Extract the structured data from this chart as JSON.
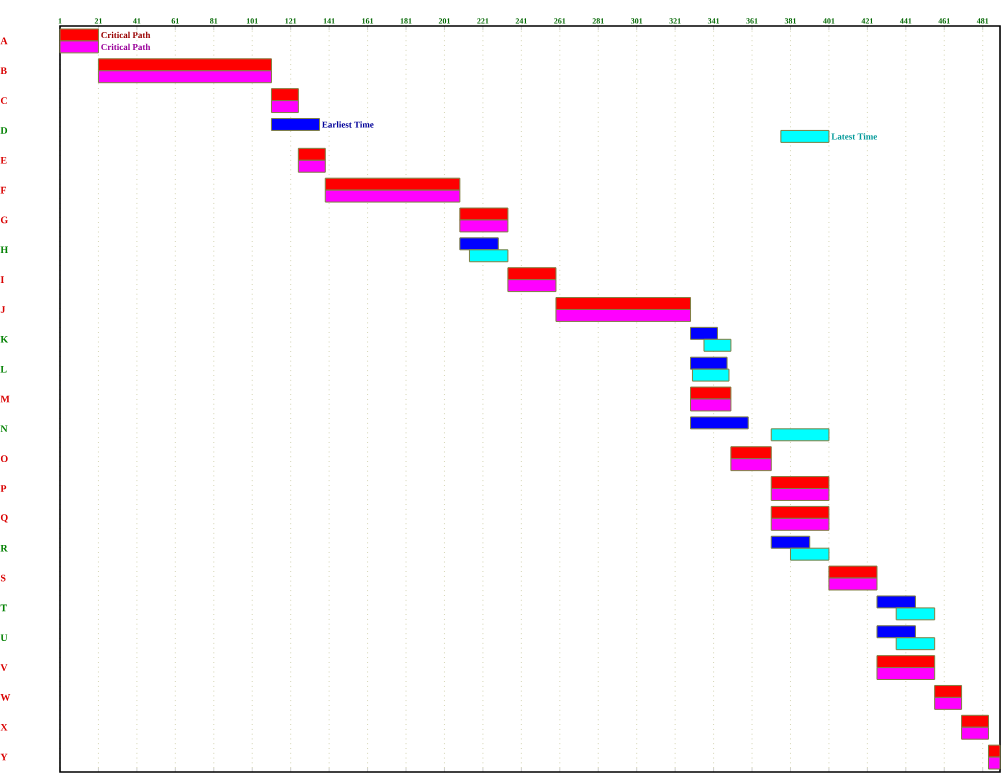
{
  "chart_data": {
    "type": "bar",
    "orientation": "horizontal",
    "grid": "x",
    "categories": [
      "A",
      "B",
      "C",
      "D",
      "E",
      "F",
      "G",
      "H",
      "I",
      "J",
      "K",
      "L",
      "M",
      "N",
      "O",
      "P",
      "Q",
      "R",
      "S",
      "T",
      "U",
      "V",
      "W",
      "X",
      "Y"
    ],
    "xlim": [
      1,
      490
    ],
    "xticks": [
      1,
      21,
      41,
      61,
      81,
      101,
      121,
      141,
      161,
      181,
      201,
      221,
      241,
      261,
      281,
      301,
      321,
      341,
      361,
      381,
      401,
      421,
      441,
      461,
      481
    ],
    "series": [
      {
        "name": "Critical Path",
        "color": "#ff0000",
        "base": [
          1,
          21,
          111,
          null,
          125,
          139,
          209,
          null,
          234,
          259,
          null,
          null,
          329,
          null,
          350,
          371,
          371,
          null,
          401,
          null,
          null,
          426,
          456,
          470,
          484
        ],
        "values": [
          20,
          90,
          14,
          null,
          14,
          70,
          25,
          null,
          25,
          70,
          null,
          null,
          21,
          null,
          21,
          30,
          30,
          null,
          25,
          null,
          null,
          30,
          14,
          14,
          6
        ]
      },
      {
        "name": "Critical Path",
        "color": "#ff00ff",
        "base": [
          1,
          21,
          111,
          null,
          125,
          139,
          209,
          null,
          234,
          259,
          null,
          null,
          329,
          null,
          350,
          371,
          371,
          null,
          401,
          null,
          null,
          426,
          456,
          470,
          484
        ],
        "values": [
          20,
          90,
          14,
          null,
          14,
          70,
          25,
          null,
          25,
          70,
          null,
          null,
          21,
          null,
          21,
          30,
          30,
          null,
          25,
          null,
          null,
          30,
          14,
          14,
          6
        ]
      },
      {
        "name": "Earliest Time",
        "color": "#0000ff",
        "base": [
          null,
          null,
          null,
          111,
          null,
          null,
          null,
          209,
          null,
          null,
          329,
          329,
          null,
          329,
          null,
          null,
          null,
          371,
          null,
          426,
          426,
          null,
          null,
          null,
          null
        ],
        "values": [
          null,
          null,
          null,
          25,
          null,
          null,
          null,
          20,
          null,
          null,
          14,
          19,
          null,
          30,
          null,
          null,
          null,
          20,
          null,
          20,
          20,
          null,
          null,
          null,
          null
        ]
      },
      {
        "name": "Latest Time",
        "color": "#00ffff",
        "base": [
          null,
          null,
          null,
          376,
          null,
          null,
          null,
          214,
          null,
          null,
          336,
          330,
          null,
          371,
          null,
          null,
          null,
          381,
          null,
          436,
          436,
          null,
          null,
          null,
          null
        ],
        "values": [
          null,
          null,
          null,
          25,
          null,
          null,
          null,
          20,
          null,
          null,
          14,
          19,
          null,
          30,
          null,
          null,
          null,
          20,
          null,
          20,
          20,
          null,
          null,
          null,
          null
        ]
      }
    ]
  }
}
